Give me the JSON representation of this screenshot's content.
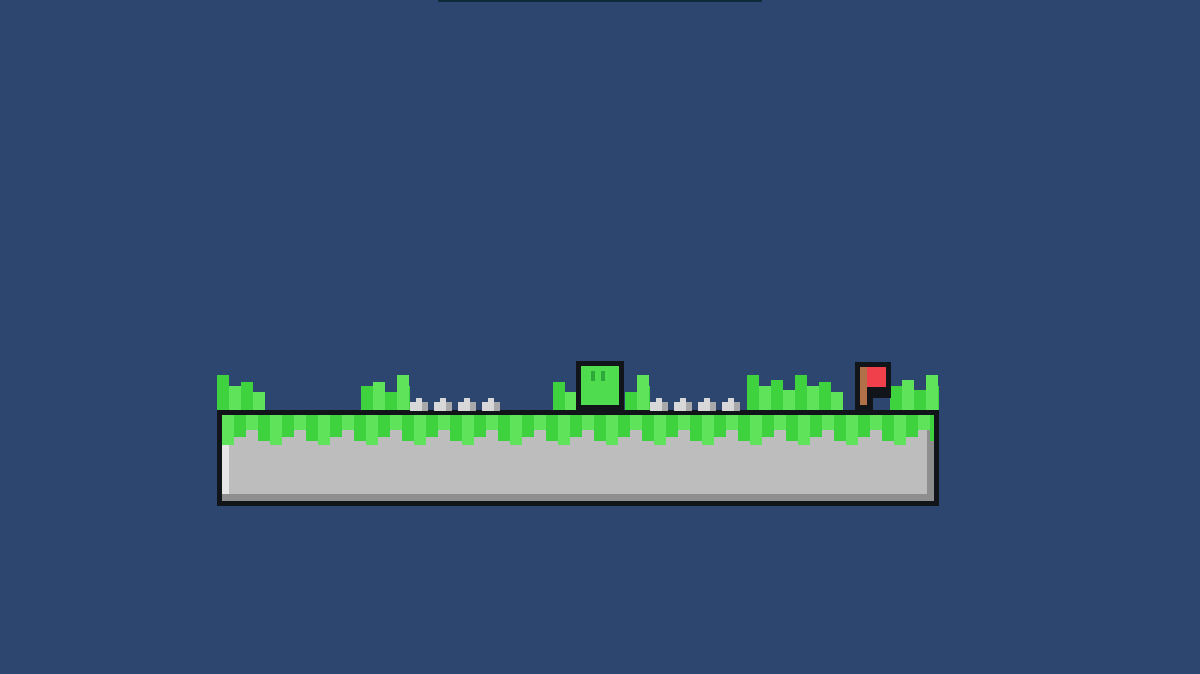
{
  "scene": {
    "background": "#2c4670",
    "colors": {
      "outline": "#111418",
      "grass_light": "#5ee35a",
      "grass_dark": "#3fd23f",
      "stone": "#bdbdbd",
      "stone_shadow": "#8e8e8e",
      "stone_highlight": "#e6e6e6",
      "spike": "#d8d8d8",
      "spike_shade": "#a9a9a9",
      "player_fill": "#4fdc4f",
      "player_eye": "#2fa83a",
      "flag_red": "#f0404c",
      "flag_pole": "#b07048"
    },
    "entities": {
      "player": "player-slime",
      "goal": "goal-flag",
      "hazard": "spike",
      "terrain": "grass-stone-platform"
    }
  }
}
